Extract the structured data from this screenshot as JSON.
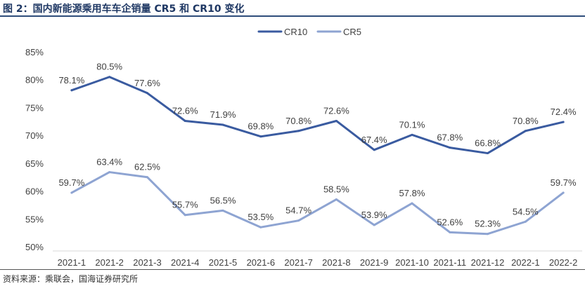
{
  "figure": {
    "title": "图 2：国内新能源乘用车车企销量 CR5 和 CR10 变化",
    "source": "资料来源：乘联会，国海证券研究所"
  },
  "chart_data": {
    "type": "line",
    "title": "",
    "xlabel": "",
    "ylabel": "",
    "categories": [
      "2021-1",
      "2021-2",
      "2021-3",
      "2021-4",
      "2021-5",
      "2021-6",
      "2021-7",
      "2021-8",
      "2021-9",
      "2021-10",
      "2021-11",
      "2021-12",
      "2022-1",
      "2022-2"
    ],
    "ylim": [
      50,
      85
    ],
    "yticks": [
      "50%",
      "55%",
      "60%",
      "65%",
      "70%",
      "75%",
      "80%",
      "85%"
    ],
    "grid": false,
    "legend": "top-center",
    "series": [
      {
        "name": "CR10",
        "color": "#3a5ba0",
        "values": [
          78.1,
          80.5,
          77.6,
          72.6,
          71.9,
          69.8,
          70.8,
          72.6,
          67.4,
          70.1,
          67.8,
          66.8,
          70.8,
          72.4
        ],
        "labels": [
          "78.1%",
          "80.5%",
          "77.6%",
          "72.6%",
          "71.9%",
          "69.8%",
          "70.8%",
          "72.6%",
          "67.4%",
          "70.1%",
          "67.8%",
          "66.8%",
          "70.8%",
          "72.4%"
        ]
      },
      {
        "name": "CR5",
        "color": "#8ea4d2",
        "values": [
          59.7,
          63.4,
          62.5,
          55.7,
          56.5,
          53.5,
          54.7,
          58.5,
          53.9,
          57.8,
          52.6,
          52.3,
          54.5,
          59.7
        ],
        "labels": [
          "59.7%",
          "63.4%",
          "62.5%",
          "55.7%",
          "56.5%",
          "53.5%",
          "54.7%",
          "58.5%",
          "53.9%",
          "57.8%",
          "52.6%",
          "52.3%",
          "54.5%",
          "59.7%"
        ]
      }
    ]
  }
}
